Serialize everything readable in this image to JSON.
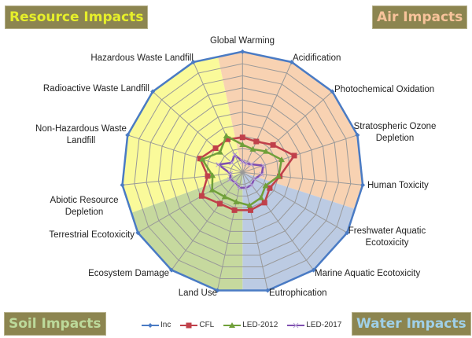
{
  "quadrant_labels": {
    "resource": {
      "text": "Resource Impacts",
      "color": "#e6ef2a"
    },
    "air": {
      "text": "Air Impacts",
      "color": "#f7c39a"
    },
    "soil": {
      "text": "Soil Impacts",
      "color": "#bcd99a"
    },
    "water": {
      "text": "Water Impacts",
      "color": "#9fd0e8"
    }
  },
  "chart_data": {
    "type": "radar",
    "categories": [
      "Global Warming",
      "Acidification",
      "Photochemical Oxidation",
      "Stratospheric Ozone Depletion",
      "Human Toxicity",
      "Freshwater Aquatic Ecotoxicity",
      "Marine Aquatic Ecotoxicity",
      "Eutrophication",
      "Land Use",
      "Ecosystem Damage",
      "Terrestrial Ecotoxicity",
      "Abiotic Resource Depletion",
      "Non-Hazardous Waste Landfill",
      "Radioactive Waste Landfill",
      "Hazardous Waste Landfill"
    ],
    "range": [
      0,
      1
    ],
    "grid_rings": 10,
    "series": [
      {
        "name": "Inc",
        "color": "#4a7bc4",
        "marker": "diamond",
        "values": [
          1,
          1,
          1,
          1,
          1,
          1,
          1,
          1,
          1,
          1,
          1,
          1,
          1,
          1,
          1
        ]
      },
      {
        "name": "CFL",
        "color": "#c0404a",
        "marker": "square",
        "values": [
          0.29,
          0.28,
          0.34,
          0.45,
          0.31,
          0.26,
          0.31,
          0.32,
          0.32,
          0.32,
          0.39,
          0.29,
          0.37,
          0.3,
          0.3
        ]
      },
      {
        "name": "LED-2012",
        "color": "#70a03a",
        "marker": "triangle",
        "values": [
          0.23,
          0.21,
          0.26,
          0.34,
          0.3,
          0.22,
          0.26,
          0.28,
          0.25,
          0.25,
          0.29,
          0.25,
          0.35,
          0.25,
          0.33
        ]
      },
      {
        "name": "LED-2017",
        "color": "#7f4fb0",
        "marker": "x",
        "values": [
          0.09,
          0.08,
          0.1,
          0.18,
          0.16,
          0.11,
          0.13,
          0.13,
          0.13,
          0.1,
          0.12,
          0.1,
          0.21,
          0.12,
          0.16
        ]
      }
    ],
    "background_sectors": [
      {
        "group": "air",
        "color": "#f8d2b2"
      },
      {
        "group": "water",
        "color": "#bccbe3"
      },
      {
        "group": "soil",
        "color": "#c6d99e"
      },
      {
        "group": "resource",
        "color": "#fafa9a"
      }
    ],
    "legend_position": "bottom"
  }
}
